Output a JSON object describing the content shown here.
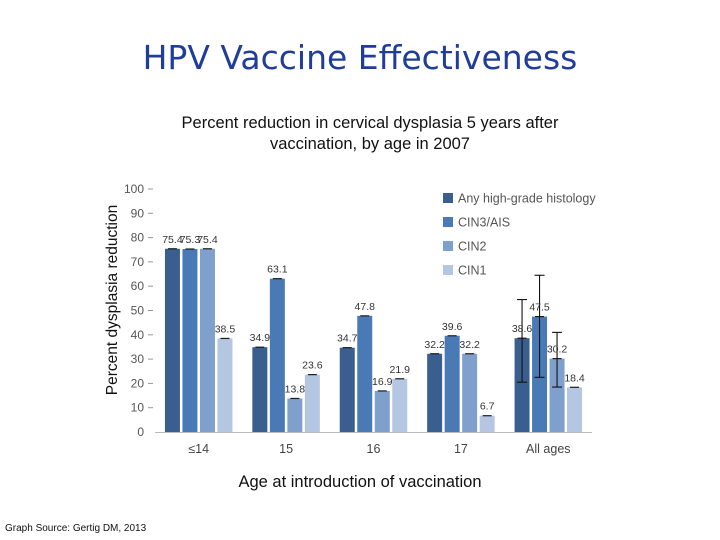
{
  "slide": {
    "title": "HPV Vaccine Effectiveness",
    "source": "Graph Source: Gertig DM, 2013"
  },
  "chart_data": {
    "type": "bar",
    "title": "Percent reduction in cervical dysplasia 5 years after vaccination, by age in 2007",
    "xlabel": "Age at introduction of vaccination",
    "ylabel": "Percent dysplasia reduction",
    "categories": [
      "≤14",
      "15",
      "16",
      "17",
      "All ages"
    ],
    "ylim": [
      0,
      100
    ],
    "yticks": [
      0,
      10,
      20,
      30,
      40,
      50,
      60,
      70,
      80,
      90,
      100
    ],
    "grid": false,
    "legend_position": "top-right",
    "series": [
      {
        "name": "Any high-grade histology",
        "color": "#3a5f8f",
        "values": [
          75.4,
          34.9,
          34.7,
          32.2,
          38.6
        ],
        "labels": [
          "75.4",
          "34.9",
          "34.7",
          "32.2",
          "38.6"
        ]
      },
      {
        "name": "CIN3/AIS",
        "color": "#4a7ab5",
        "values": [
          75.3,
          63.1,
          47.8,
          39.6,
          47.5
        ],
        "labels": [
          "75.3",
          "63.1",
          "47.8",
          "39.6",
          "47.5"
        ]
      },
      {
        "name": "CIN2",
        "color": "#7f9fcc",
        "values": [
          75.4,
          13.8,
          16.9,
          32.2,
          30.2
        ],
        "labels": [
          "75.4",
          "13.8",
          "16.9",
          "32.2",
          "30.2"
        ]
      },
      {
        "name": "CIN1",
        "color": "#b4c6e2",
        "values": [
          38.5,
          23.6,
          21.9,
          6.7,
          18.4
        ],
        "labels": [
          "38.5",
          "23.6",
          "21.9",
          "6.7",
          "18.4"
        ]
      }
    ],
    "error_bars": [
      {
        "category": "All ages",
        "series": "Any high-grade histology",
        "low": 20.5,
        "high": 54.5
      },
      {
        "category": "All ages",
        "series": "CIN3/AIS",
        "low": 22.5,
        "high": 64.5
      },
      {
        "category": "All ages",
        "series": "CIN2",
        "low": 18.5,
        "high": 41.0
      }
    ]
  }
}
